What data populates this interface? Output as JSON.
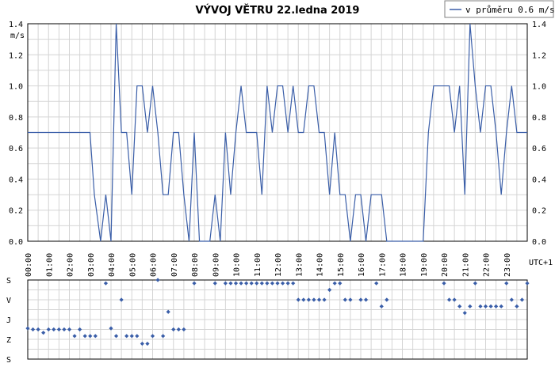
{
  "chart_data": [
    {
      "type": "line",
      "title": "VÝVOJ VĚTRU  22.ledna 2019",
      "ylabel": "m/s",
      "timezone_label": "UTC+1",
      "legend": {
        "label": "v průměru 0.6 m/s",
        "placement": "top-right"
      },
      "ylim": [
        0,
        1.4
      ],
      "xlim": [
        0,
        24
      ],
      "grid": true,
      "yticks": [
        "0.0",
        "0.2",
        "0.4",
        "0.6",
        "0.8",
        "1.0",
        "1.2",
        "1.4"
      ],
      "xticks": [
        "00:00",
        "01:00",
        "02:00",
        "03:00",
        "04:00",
        "05:00",
        "06:00",
        "07:00",
        "08:00",
        "09:00",
        "10:00",
        "11:00",
        "12:00",
        "13:00",
        "14:00",
        "15:00",
        "16:00",
        "17:00",
        "18:00",
        "19:00",
        "20:00",
        "21:00",
        "22:00",
        "23:00"
      ],
      "series": [
        {
          "name": "v průměru 0.6 m/s",
          "color": "#3a5ea8",
          "x": [
            0,
            2.99,
            3.2,
            3.5,
            3.75,
            4.0,
            4.25,
            4.5,
            4.75,
            5.0,
            5.25,
            5.5,
            5.75,
            6.0,
            6.25,
            6.5,
            6.75,
            7.0,
            7.25,
            7.5,
            7.75,
            8.0,
            8.25,
            8.5,
            8.75,
            9.0,
            9.25,
            9.5,
            9.75,
            10.0,
            10.25,
            10.5,
            10.75,
            11.0,
            11.25,
            11.5,
            11.75,
            12.0,
            12.25,
            12.5,
            12.75,
            13.0,
            13.25,
            13.5,
            13.75,
            14.0,
            14.25,
            14.5,
            14.75,
            15.0,
            15.25,
            15.5,
            15.75,
            16.0,
            16.25,
            16.5,
            16.75,
            17.0,
            17.25,
            17.5,
            17.75,
            18.0,
            18.25,
            18.5,
            18.75,
            19.0,
            19.25,
            19.5,
            19.75,
            20.0,
            20.25,
            20.5,
            20.75,
            21.0,
            21.25,
            21.5,
            21.75,
            22.0,
            22.25,
            22.5,
            22.75,
            23.0,
            23.25,
            23.5,
            23.75,
            24.0
          ],
          "y": [
            0.7,
            0.7,
            0.3,
            0.0,
            0.3,
            0.0,
            1.4,
            0.7,
            0.7,
            0.3,
            1.0,
            1.0,
            0.7,
            1.0,
            0.7,
            0.3,
            0.3,
            0.7,
            0.7,
            0.3,
            0.0,
            0.7,
            0.0,
            0.0,
            0.0,
            0.3,
            0.0,
            0.7,
            0.3,
            0.7,
            1.0,
            0.7,
            0.7,
            0.7,
            0.3,
            1.0,
            0.7,
            1.0,
            1.0,
            0.7,
            1.0,
            0.7,
            0.7,
            1.0,
            1.0,
            0.7,
            0.7,
            0.3,
            0.7,
            0.3,
            0.3,
            0.0,
            0.3,
            0.3,
            0.0,
            0.3,
            0.3,
            0.3,
            0.0,
            0.0,
            0.0,
            0.0,
            0.0,
            0.0,
            0.0,
            0.0,
            0.7,
            1.0,
            1.0,
            1.0,
            1.0,
            0.7,
            1.0,
            0.3,
            1.4,
            1.0,
            0.7,
            1.0,
            1.0,
            0.7,
            0.3,
            0.7,
            1.0,
            0.7,
            0.7,
            0.7
          ]
        }
      ]
    },
    {
      "type": "scatter",
      "ylabel_ticks": [
        "S",
        "V",
        "J",
        "Z",
        "S"
      ],
      "yrange": [
        0,
        360
      ],
      "xlim": [
        0,
        24
      ],
      "grid": true,
      "series": [
        {
          "name": "",
          "color": "#3a5ea8",
          "x": [
            0.0,
            0.25,
            0.5,
            0.75,
            1.0,
            1.25,
            1.5,
            1.75,
            2.0,
            2.25,
            2.5,
            2.75,
            3.0,
            3.25,
            3.75,
            4.0,
            4.25,
            4.5,
            4.75,
            5.0,
            5.25,
            5.5,
            5.75,
            6.0,
            6.25,
            6.5,
            6.75,
            7.0,
            7.25,
            7.5,
            8.0,
            9.0,
            9.5,
            9.75,
            10.0,
            10.25,
            10.5,
            10.75,
            11.0,
            11.25,
            11.5,
            11.75,
            12.0,
            12.25,
            12.5,
            12.75,
            13.0,
            13.25,
            13.5,
            13.75,
            14.0,
            14.25,
            14.5,
            14.75,
            15.0,
            15.25,
            15.5,
            16.0,
            16.25,
            16.75,
            17.0,
            17.25,
            20.0,
            20.25,
            20.5,
            20.75,
            21.0,
            21.25,
            21.5,
            21.75,
            22.0,
            22.25,
            22.5,
            22.75,
            23.0,
            23.25,
            23.5,
            23.75,
            24.0
          ],
          "y": [
            220,
            225,
            225,
            240,
            225,
            225,
            225,
            225,
            225,
            255,
            225,
            255,
            255,
            255,
            15,
            220,
            255,
            90,
            255,
            255,
            255,
            290,
            290,
            255,
            0,
            255,
            145,
            225,
            225,
            225,
            15,
            15,
            15,
            15,
            15,
            15,
            15,
            15,
            15,
            15,
            15,
            15,
            15,
            15,
            15,
            15,
            90,
            90,
            90,
            90,
            90,
            90,
            45,
            15,
            15,
            90,
            90,
            90,
            90,
            15,
            120,
            90,
            15,
            90,
            90,
            120,
            150,
            120,
            15,
            120,
            120,
            120,
            120,
            120,
            15,
            90,
            120,
            90,
            15
          ]
        }
      ]
    }
  ]
}
